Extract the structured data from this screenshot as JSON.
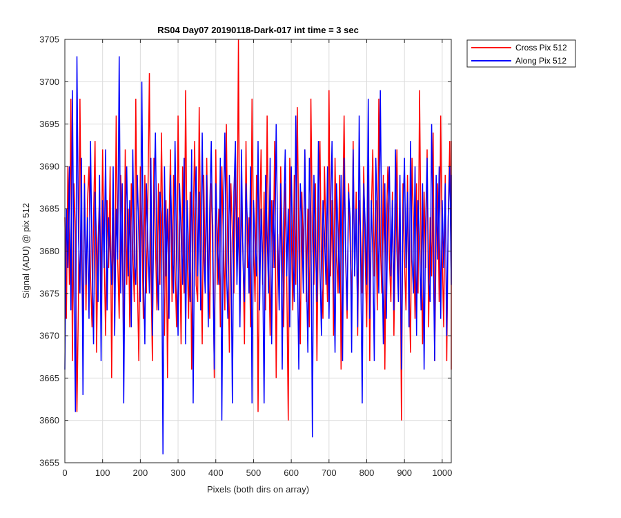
{
  "chart_data": {
    "type": "line",
    "title": "RS04 Day07 20190118-Dark-017 int time = 3 sec",
    "xlabel": "Pixels (both dirs on array)",
    "ylabel": "Signal (ADU) @ pix 512",
    "xlim": [
      0,
      1024
    ],
    "ylim": [
      3655,
      3705
    ],
    "xticks": [
      0,
      100,
      200,
      300,
      400,
      500,
      600,
      700,
      800,
      900,
      1000
    ],
    "yticks": [
      3655,
      3660,
      3665,
      3670,
      3675,
      3680,
      3685,
      3690,
      3695,
      3700,
      3705
    ],
    "grid": true,
    "legend_position": "outside-top-right",
    "series": [
      {
        "name": "Cross Pix 512",
        "color": "#ff0000",
        "step": 4,
        "values": [
          3684,
          3672,
          3690,
          3676,
          3698,
          3667,
          3688,
          3682,
          3661,
          3674,
          3698,
          3679,
          3670,
          3689,
          3673,
          3686,
          3690,
          3677,
          3671,
          3684,
          3693,
          3668,
          3681,
          3687,
          3675,
          3692,
          3680,
          3670,
          3686,
          3678,
          3690,
          3665,
          3684,
          3674,
          3696,
          3679,
          3672,
          3689,
          3681,
          3668,
          3692,
          3676,
          3685,
          3671,
          3688,
          3680,
          3674,
          3698,
          3677,
          3667,
          3690,
          3683,
          3672,
          3689,
          3675,
          3686,
          3701,
          3678,
          3667,
          3691,
          3681,
          3673,
          3688,
          3676,
          3694,
          3680,
          3670,
          3686,
          3665,
          3683,
          3692,
          3674,
          3689,
          3678,
          3671,
          3696,
          3682,
          3669,
          3690,
          3675,
          3699,
          3680,
          3672,
          3687,
          3666,
          3683,
          3693,
          3676,
          3674,
          3697,
          3681,
          3669,
          3689,
          3677,
          3691,
          3678,
          3672,
          3688,
          3683,
          3665,
          3692,
          3676,
          3685,
          3671,
          3690,
          3681,
          3673,
          3695,
          3679,
          3668,
          3688,
          3682,
          3675,
          3691,
          3677,
          3705,
          3672,
          3686,
          3680,
          3669,
          3693,
          3678,
          3684,
          3671,
          3698,
          3681,
          3674,
          3689,
          3661,
          3683,
          3692,
          3676,
          3687,
          3673,
          3696,
          3680,
          3670,
          3686,
          3678,
          3693,
          3665,
          3682,
          3675,
          3690,
          3681,
          3671,
          3688,
          3677,
          3660,
          3691,
          3683,
          3673,
          3689,
          3676,
          3697,
          3681,
          3669,
          3687,
          3679,
          3692,
          3674,
          3685,
          3671,
          3698,
          3682,
          3676,
          3688,
          3667,
          3684,
          3693,
          3678,
          3672,
          3690,
          3681,
          3674,
          3699,
          3677,
          3686,
          3670,
          3691,
          3680,
          3675,
          3689,
          3666,
          3683,
          3696,
          3679,
          3672,
          3688,
          3681,
          3673,
          3693,
          3677,
          3687,
          3670,
          3686,
          3682,
          3675,
          3690,
          3679,
          3671,
          3689,
          3667,
          3684,
          3692,
          3677,
          3686,
          3673,
          3698,
          3681,
          3675,
          3689,
          3666,
          3683,
          3690,
          3679,
          3674,
          3687,
          3670,
          3682,
          3692,
          3676,
          3685,
          3660,
          3688,
          3679,
          3673,
          3689,
          3677,
          3668,
          3691,
          3683,
          3672,
          3688,
          3675,
          3699,
          3680,
          3669,
          3687,
          3678,
          3692,
          3671,
          3684,
          3677,
          3694,
          3667,
          3682,
          3688,
          3674,
          3696,
          3680,
          3671,
          3689,
          3667,
          3684,
          3693,
          3676,
          3671,
          3688,
          3681,
          3692,
          3669,
          3686,
          3672,
          3683,
          3693,
          3678,
          3666,
          3688,
          3685,
          3669,
          3691,
          3676,
          3686,
          3672
        ]
      },
      {
        "name": "Along Pix 512",
        "color": "#0000ff",
        "step": 4,
        "values": [
          3666,
          3685,
          3678,
          3690,
          3673,
          3699,
          3677,
          3661,
          3703,
          3682,
          3675,
          3691,
          3663,
          3688,
          3676,
          3684,
          3672,
          3693,
          3679,
          3669,
          3687,
          3681,
          3674,
          3689,
          3667,
          3686,
          3678,
          3692,
          3673,
          3684,
          3680,
          3676,
          3690,
          3670,
          3685,
          3679,
          3703,
          3675,
          3688,
          3662,
          3683,
          3690,
          3677,
          3686,
          3671,
          3692,
          3679,
          3676,
          3689,
          3682,
          3674,
          3700,
          3678,
          3669,
          3688,
          3681,
          3675,
          3691,
          3670,
          3686,
          3694,
          3679,
          3673,
          3687,
          3684,
          3656,
          3690,
          3677,
          3685,
          3672,
          3689,
          3681,
          3675,
          3693,
          3679,
          3670,
          3688,
          3682,
          3676,
          3691,
          3669,
          3686,
          3680,
          3674,
          3692,
          3662,
          3684,
          3690,
          3677,
          3687,
          3673,
          3694,
          3680,
          3675,
          3689,
          3671,
          3685,
          3693,
          3679,
          3666,
          3688,
          3682,
          3676,
          3691,
          3660,
          3684,
          3694,
          3678,
          3672,
          3689,
          3681,
          3662,
          3687,
          3693,
          3676,
          3684,
          3671,
          3692,
          3679,
          3674,
          3688,
          3683,
          3675,
          3690,
          3662,
          3686,
          3681,
          3677,
          3693,
          3673,
          3685,
          3679,
          3662,
          3689,
          3682,
          3675,
          3691,
          3669,
          3686,
          3678,
          3695,
          3681,
          3673,
          3688,
          3666,
          3684,
          3692,
          3677,
          3685,
          3671,
          3690,
          3680,
          3674,
          3696,
          3679,
          3666,
          3688,
          3683,
          3675,
          3692,
          3678,
          3668,
          3691,
          3684,
          3658,
          3689,
          3681,
          3674,
          3693,
          3678,
          3670,
          3686,
          3682,
          3676,
          3690,
          3672,
          3684,
          3693,
          3679,
          3668,
          3688,
          3682,
          3675,
          3689,
          3667,
          3691,
          3680,
          3673,
          3687,
          3684,
          3668,
          3692,
          3677,
          3685,
          3671,
          3696,
          3679,
          3662,
          3688,
          3683,
          3676,
          3698,
          3672,
          3686,
          3680,
          3667,
          3691,
          3684,
          3675,
          3699,
          3681,
          3669,
          3688,
          3672,
          3685,
          3690,
          3677,
          3686,
          3673,
          3692,
          3680,
          3674,
          3689,
          3666,
          3684,
          3691,
          3678,
          3687,
          3671,
          3693,
          3679,
          3675,
          3690,
          3670,
          3686,
          3681,
          3673,
          3688,
          3666,
          3683,
          3691,
          3677,
          3674,
          3695,
          3681,
          3667,
          3689,
          3679,
          3690,
          3672,
          3686,
          3678,
          3688,
          3670,
          3684,
          3690,
          3676,
          3689
        ]
      }
    ]
  }
}
